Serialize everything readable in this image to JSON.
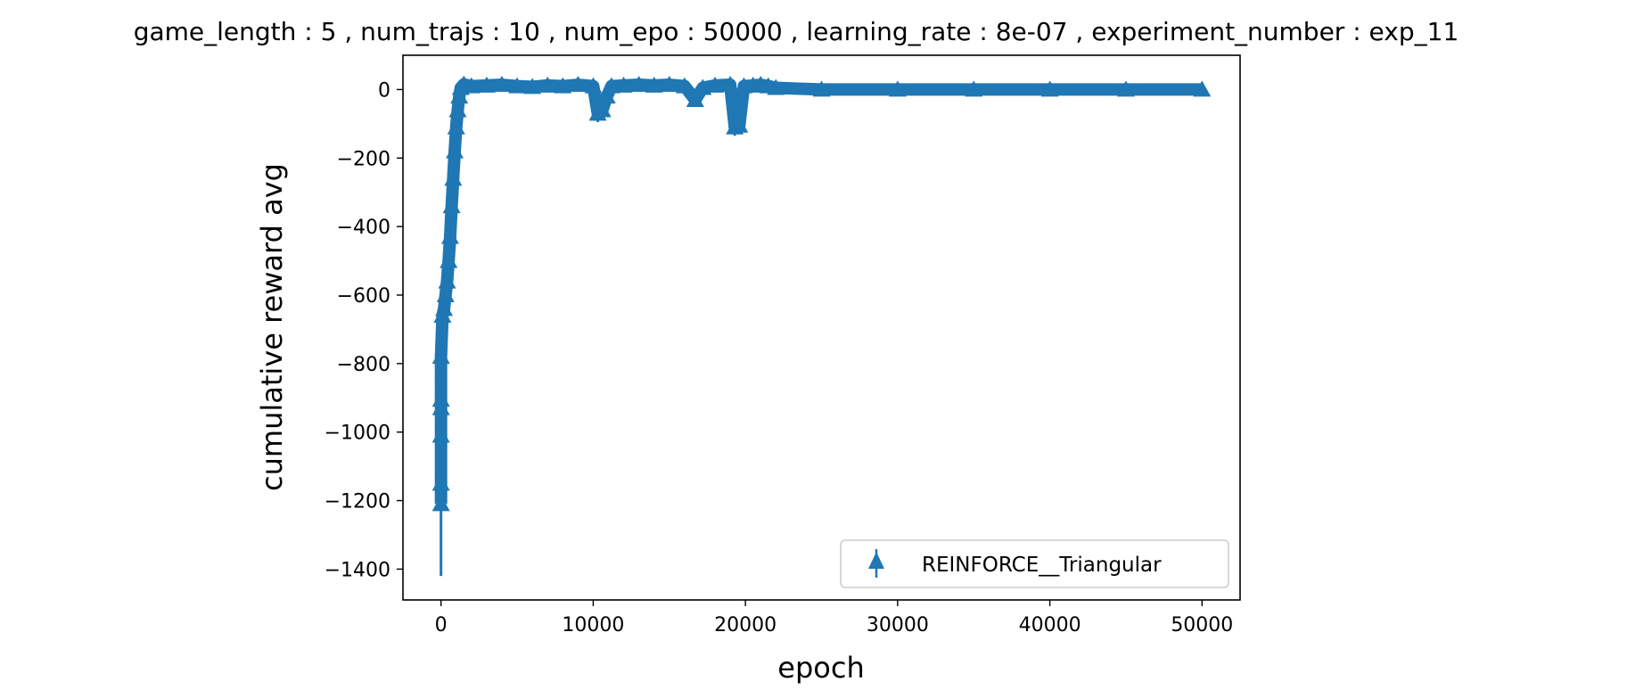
{
  "chart_data": {
    "type": "line",
    "title": "game_length : 5 , num_trajs : 10 , num_epo : 50000 , learning_rate : 8e-07 , experiment_number : exp_11",
    "xlabel": "epoch",
    "ylabel": "cumulative reward avg",
    "xlim": [
      -2500,
      52500
    ],
    "ylim": [
      -1490,
      100
    ],
    "xticks": [
      0,
      10000,
      20000,
      30000,
      40000,
      50000
    ],
    "xtick_labels": [
      "0",
      "10000",
      "20000",
      "30000",
      "40000",
      "50000"
    ],
    "yticks": [
      0,
      -200,
      -400,
      -600,
      -800,
      -1000,
      -1200,
      -1400
    ],
    "ytick_labels": [
      "0",
      "−200",
      "−400",
      "−600",
      "−800",
      "−1000",
      "−1200",
      "−1400"
    ],
    "grid": false,
    "legend_position": "lower-right",
    "color": "#1f77b4",
    "series": [
      {
        "name": "REINFORCE__Triangular",
        "marker": "triangle",
        "x": [
          0,
          0,
          0,
          0,
          0,
          0,
          100,
          200,
          300,
          400,
          500,
          600,
          700,
          800,
          900,
          1000,
          1100,
          1200,
          1300,
          1500,
          2000,
          3000,
          4000,
          5000,
          6000,
          7000,
          8000,
          9000,
          10000,
          10300,
          10600,
          10900,
          11200,
          12000,
          13000,
          14000,
          15000,
          16000,
          16700,
          17200,
          18000,
          19000,
          19300,
          19600,
          19900,
          20500,
          21000,
          21500,
          22000,
          25000,
          30000,
          35000,
          40000,
          45000,
          50000
        ],
        "y": [
          -1210,
          -1150,
          -1010,
          -930,
          -905,
          -780,
          -660,
          -640,
          -600,
          -560,
          -500,
          -430,
          -340,
          -260,
          -180,
          -110,
          -60,
          -20,
          5,
          15,
          10,
          12,
          14,
          10,
          8,
          12,
          10,
          14,
          10,
          -70,
          -60,
          -20,
          10,
          12,
          14,
          12,
          14,
          10,
          -30,
          5,
          12,
          14,
          -110,
          -105,
          10,
          12,
          14,
          10,
          5,
          0,
          0,
          0,
          0,
          0,
          0
        ],
        "yerr": [
          210,
          60,
          80,
          40,
          40,
          60,
          40,
          40,
          40,
          40,
          40,
          40,
          40,
          40,
          40,
          35,
          30,
          25,
          20,
          20,
          20,
          20,
          20,
          20,
          20,
          20,
          20,
          20,
          20,
          25,
          25,
          20,
          20,
          20,
          20,
          20,
          20,
          20,
          20,
          20,
          20,
          20,
          25,
          25,
          20,
          20,
          20,
          20,
          15,
          12,
          12,
          12,
          12,
          12,
          12
        ]
      }
    ]
  }
}
